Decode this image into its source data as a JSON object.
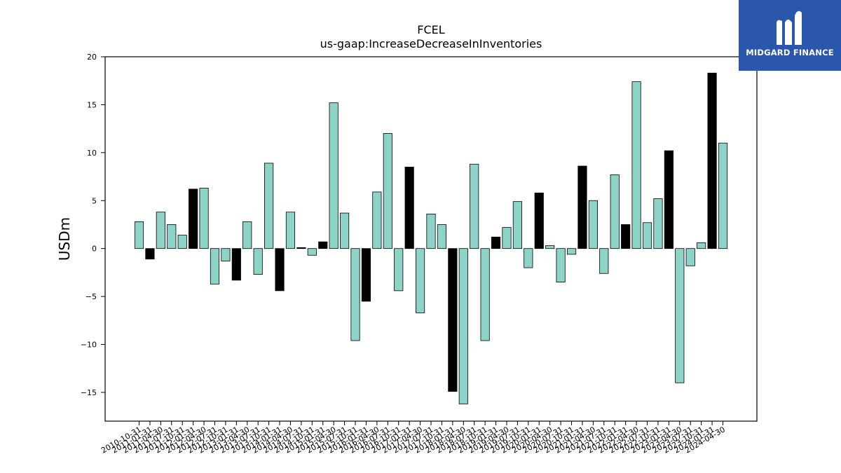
{
  "brand": {
    "name": "MIDGARD FINANCE",
    "bg_color": "#2a56ac"
  },
  "chart_data": {
    "type": "bar",
    "title": "FCEL",
    "subtitle": "us-gaap:IncreaseDecreaseInInventories",
    "xlabel": "",
    "ylabel": "USDm",
    "ylim": [
      -18,
      20
    ],
    "yticks": [
      -15,
      -10,
      -5,
      0,
      5,
      10,
      15,
      20
    ],
    "colors": {
      "default": "#8dd3c7",
      "highlight": "#000000",
      "edge": "#000000"
    },
    "categories": [
      "2010-10-31",
      "2011-01-31",
      "2011-04-30",
      "2011-07-31",
      "2011-10-31",
      "2012-01-31",
      "2012-04-30",
      "2012-07-31",
      "2012-10-31",
      "2013-01-31",
      "2013-04-30",
      "2013-07-31",
      "2013-10-31",
      "2014-01-31",
      "2014-04-30",
      "2014-07-31",
      "2014-10-31",
      "2015-01-31",
      "2015-04-30",
      "2015-07-31",
      "2015-10-31",
      "2016-01-31",
      "2016-04-30",
      "2016-07-31",
      "2016-10-31",
      "2017-01-31",
      "2017-04-30",
      "2017-07-31",
      "2017-10-31",
      "2018-01-31",
      "2018-04-30",
      "2018-07-31",
      "2018-10-31",
      "2019-01-31",
      "2019-04-30",
      "2019-07-31",
      "2019-10-31",
      "2020-01-31",
      "2020-04-30",
      "2020-07-31",
      "2020-10-31",
      "2021-01-31",
      "2021-04-30",
      "2021-07-31",
      "2021-10-31",
      "2022-01-31",
      "2022-04-30",
      "2022-07-31",
      "2022-10-31",
      "2023-01-31",
      "2023-04-30",
      "2023-07-31",
      "2023-10-31",
      "2024-01-31",
      "2024-04-30"
    ],
    "values": [
      2.8,
      -1.1,
      3.8,
      2.5,
      1.4,
      6.2,
      6.3,
      -3.7,
      -1.3,
      -3.3,
      2.8,
      -2.7,
      8.9,
      -4.4,
      3.8,
      0.1,
      -0.7,
      0.7,
      15.2,
      3.7,
      -9.6,
      -5.5,
      5.9,
      12.0,
      -4.4,
      8.5,
      -6.7,
      3.6,
      2.5,
      -14.9,
      -16.2,
      8.8,
      -9.6,
      1.2,
      2.2,
      4.9,
      -2.0,
      5.8,
      0.3,
      -3.5,
      -0.6,
      8.6,
      5.0,
      -2.6,
      7.7,
      2.5,
      17.4,
      2.7,
      5.2,
      10.2,
      -14.0,
      -1.8,
      0.6,
      18.3,
      11.0
    ],
    "highlight": [
      false,
      true,
      false,
      false,
      false,
      true,
      false,
      false,
      false,
      true,
      false,
      false,
      false,
      true,
      false,
      true,
      false,
      true,
      false,
      false,
      false,
      true,
      false,
      false,
      false,
      true,
      false,
      false,
      false,
      true,
      false,
      false,
      false,
      true,
      false,
      false,
      false,
      true,
      false,
      false,
      false,
      true,
      false,
      false,
      false,
      true,
      false,
      false,
      false,
      true,
      false,
      false,
      false,
      true,
      false
    ]
  }
}
